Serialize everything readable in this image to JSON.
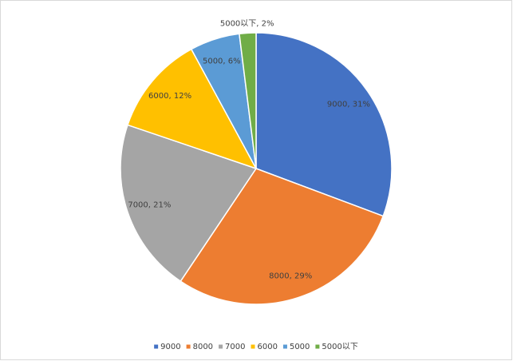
{
  "chart_data": {
    "type": "pie",
    "categories": [
      "9000",
      "8000",
      "7000",
      "6000",
      "5000",
      "5000以下"
    ],
    "values": [
      31,
      29,
      21,
      12,
      6,
      2
    ],
    "value_labels": [
      "9000, 31%",
      "8000, 29%",
      "7000, 21%",
      "6000, 12%",
      "5000, 6%",
      "5000以下, 2%"
    ],
    "colors": [
      "#4472c4",
      "#ed7d31",
      "#a5a5a5",
      "#ffc000",
      "#5b9bd5",
      "#70ad47"
    ],
    "legend": "bottom"
  }
}
